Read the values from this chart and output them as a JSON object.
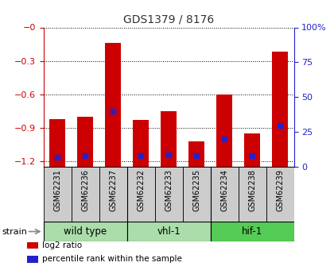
{
  "title": "GDS1379 / 8176",
  "samples": [
    "GSM62231",
    "GSM62236",
    "GSM62237",
    "GSM62232",
    "GSM62233",
    "GSM62235",
    "GSM62234",
    "GSM62238",
    "GSM62239"
  ],
  "log2_ratio": [
    -0.82,
    -0.8,
    -0.14,
    -0.83,
    -0.75,
    -1.02,
    -0.6,
    -0.95,
    -0.22
  ],
  "percentile_rank": [
    7,
    8,
    40,
    8,
    9,
    8,
    20,
    8,
    30
  ],
  "ylim_left": [
    -1.25,
    0.0
  ],
  "ylim_right": [
    0,
    100
  ],
  "yticks_left": [
    0.0,
    -0.3,
    -0.6,
    -0.9,
    -1.2
  ],
  "ytick_labels_left": [
    "−0",
    "−0.3",
    "−0.6",
    "−0.9",
    "−1.2"
  ],
  "yticks_right": [
    0,
    25,
    50,
    75,
    100
  ],
  "ytick_labels_right": [
    "0",
    "25",
    "50",
    "75",
    "100%"
  ],
  "bar_color": "#cc0000",
  "marker_color": "#2222cc",
  "bg_color_plot": "#ffffff",
  "title_color": "#333333",
  "left_axis_color": "#cc0000",
  "right_axis_color": "#2222cc",
  "sample_box_color": "#cccccc",
  "group_data": [
    {
      "label": "wild type",
      "start": 0,
      "end": 2,
      "color": "#aaddaa"
    },
    {
      "label": "vhl-1",
      "start": 3,
      "end": 5,
      "color": "#aaddaa"
    },
    {
      "label": "hif-1",
      "start": 6,
      "end": 8,
      "color": "#55cc55"
    }
  ],
  "legend_items": [
    {
      "color": "#cc0000",
      "label": "log2 ratio"
    },
    {
      "color": "#2222cc",
      "label": "percentile rank within the sample"
    }
  ]
}
